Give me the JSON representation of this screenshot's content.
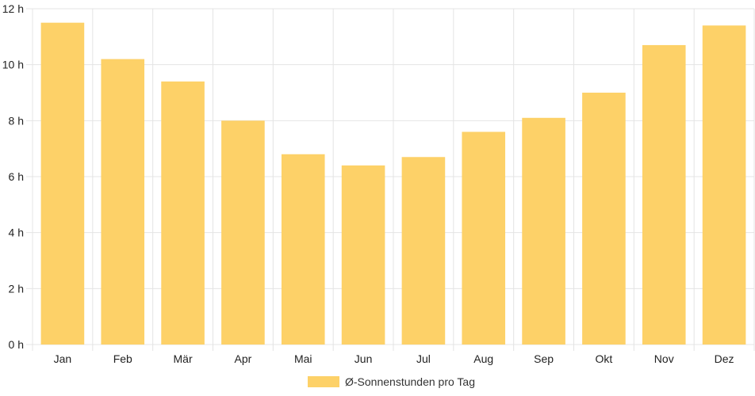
{
  "chart_data": {
    "type": "bar",
    "categories": [
      "Jan",
      "Feb",
      "Mär",
      "Apr",
      "Mai",
      "Jun",
      "Jul",
      "Aug",
      "Sep",
      "Okt",
      "Nov",
      "Dez"
    ],
    "series": [
      {
        "name": "Ø-Sonnenstunden pro Tag",
        "values": [
          11.5,
          10.2,
          9.4,
          8.0,
          6.8,
          6.4,
          6.7,
          7.6,
          8.1,
          9.0,
          10.7,
          11.4
        ],
        "color": "#fdd168"
      }
    ],
    "y_ticks": [
      "0 h",
      "2 h",
      "4 h",
      "6 h",
      "8 h",
      "10 h",
      "12 h"
    ],
    "y_tick_values": [
      0,
      2,
      4,
      6,
      8,
      10,
      12
    ],
    "ylim": [
      0,
      12
    ],
    "unit_suffix": " h",
    "grid": true,
    "grid_color": "#e4e4e4",
    "legend_position": "bottom-center",
    "title": "",
    "xlabel": "",
    "ylabel": ""
  }
}
